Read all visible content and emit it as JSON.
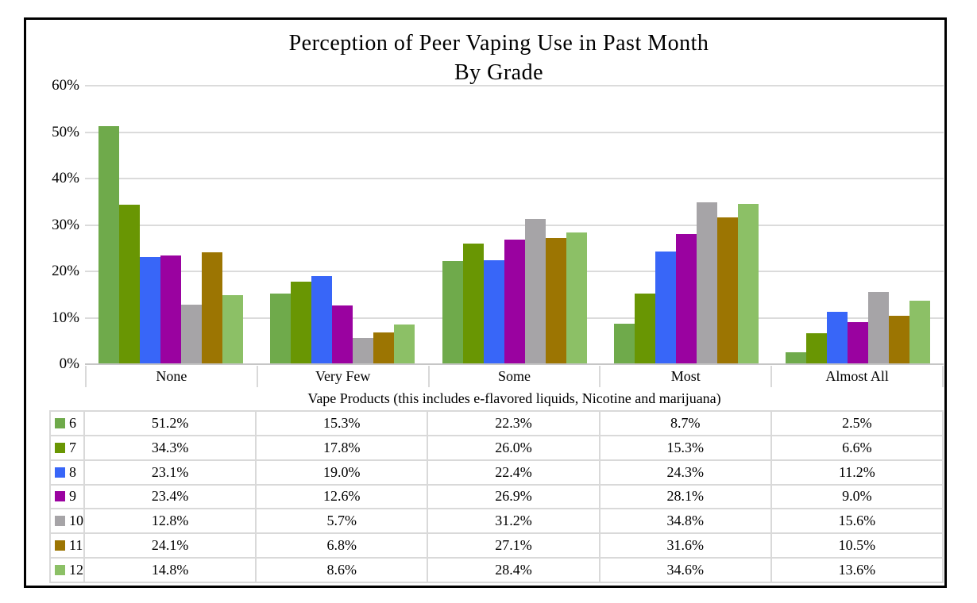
{
  "title": {
    "line1": "Perception of Peer Vaping Use in Past Month",
    "line2": "By Grade"
  },
  "y_axis": {
    "tick_labels": [
      "0%",
      "10%",
      "20%",
      "30%",
      "40%",
      "50%",
      "60%"
    ]
  },
  "chart_data": {
    "type": "bar",
    "title": "Perception of Peer Vaping Use in Past Month By Grade",
    "categories": [
      "None",
      "Very Few",
      "Some",
      "Most",
      "Almost All"
    ],
    "series": [
      {
        "name": "6",
        "color": "#6FAA4B",
        "values": [
          51.2,
          15.3,
          22.3,
          8.7,
          2.5
        ]
      },
      {
        "name": "7",
        "color": "#699603",
        "values": [
          34.3,
          17.8,
          26.0,
          15.3,
          6.6
        ]
      },
      {
        "name": "8",
        "color": "#3866F8",
        "values": [
          23.1,
          19.0,
          22.4,
          24.3,
          11.2
        ]
      },
      {
        "name": "9",
        "color": "#9A02A0",
        "values": [
          23.4,
          12.6,
          26.9,
          28.1,
          9.0
        ]
      },
      {
        "name": "10",
        "color": "#A6A4A7",
        "values": [
          12.8,
          5.7,
          31.2,
          34.8,
          15.6
        ]
      },
      {
        "name": "11",
        "color": "#9C7502",
        "values": [
          24.1,
          6.8,
          27.1,
          31.6,
          10.5
        ]
      },
      {
        "name": "12",
        "color": "#8CC066",
        "values": [
          14.8,
          8.6,
          28.4,
          34.6,
          13.6
        ]
      }
    ],
    "xlabel": "Vape Products (this includes e-flavored liquids, Nicotine and marijuana)",
    "ylabel": "",
    "ylim": [
      0,
      60
    ],
    "ytick_step": 10,
    "grid": true,
    "legend_position": "table-left",
    "value_suffix": "%"
  },
  "colors": {
    "gridline": "#DBDBDB",
    "axis_line": "#C6C6C6",
    "table_border": "#D9D9D9",
    "frame": "#000000"
  }
}
